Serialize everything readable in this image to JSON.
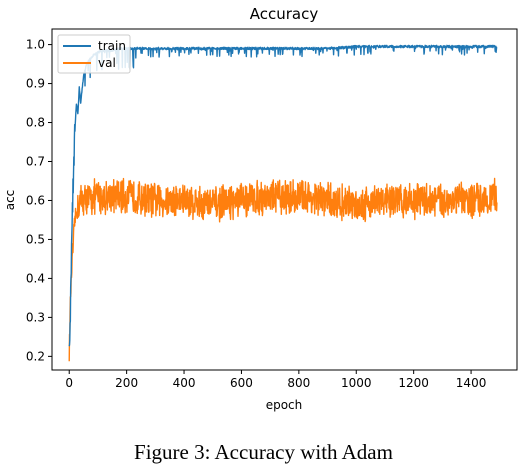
{
  "figure": {
    "caption": "Figure 3: Accuracy with Adam"
  },
  "chart_data": {
    "type": "line",
    "title": "Accuracy",
    "xlabel": "epoch",
    "ylabel": "acc",
    "xlim": [
      -60,
      1560
    ],
    "ylim": [
      0.165,
      1.04
    ],
    "xticks": [
      0,
      200,
      400,
      600,
      800,
      1000,
      1200,
      1400
    ],
    "yticks": [
      0.2,
      0.3,
      0.4,
      0.5,
      0.6,
      0.7,
      0.8,
      0.9,
      1.0
    ],
    "xtick_labels": [
      "0",
      "200",
      "400",
      "600",
      "800",
      "1000",
      "1200",
      "1400"
    ],
    "ytick_labels": [
      "0.2",
      "0.3",
      "0.4",
      "0.5",
      "0.6",
      "0.7",
      "0.8",
      "0.9",
      "1.0"
    ],
    "grid": false,
    "legend_position": "top-left",
    "series": [
      {
        "name": "train",
        "color": "#1f77b4",
        "x": [
          0,
          5,
          10,
          15,
          20,
          25,
          30,
          35,
          40,
          50,
          60,
          70,
          80,
          100,
          120,
          150,
          180,
          200,
          250,
          300,
          400,
          500,
          600,
          700,
          800,
          900,
          1000,
          1100,
          1200,
          1300,
          1400,
          1490
        ],
        "y": [
          0.19,
          0.36,
          0.55,
          0.68,
          0.78,
          0.85,
          0.82,
          0.89,
          0.85,
          0.92,
          0.95,
          0.96,
          0.97,
          0.98,
          0.985,
          0.985,
          0.99,
          0.99,
          0.99,
          0.99,
          0.99,
          0.99,
          0.99,
          0.99,
          0.99,
          0.99,
          0.995,
          0.995,
          0.995,
          0.995,
          0.995,
          0.995
        ]
      },
      {
        "name": "val",
        "color": "#ff7f0e",
        "x": [
          0,
          5,
          10,
          15,
          20,
          25,
          30,
          40,
          50,
          100,
          200,
          300,
          400,
          500,
          600,
          700,
          800,
          900,
          1000,
          1100,
          1200,
          1300,
          1400,
          1490
        ],
        "y": [
          0.21,
          0.36,
          0.44,
          0.5,
          0.55,
          0.57,
          0.58,
          0.6,
          0.6,
          0.61,
          0.61,
          0.6,
          0.6,
          0.59,
          0.6,
          0.61,
          0.61,
          0.6,
          0.59,
          0.6,
          0.6,
          0.6,
          0.6,
          0.61
        ],
        "noise_band": 0.05
      }
    ]
  }
}
